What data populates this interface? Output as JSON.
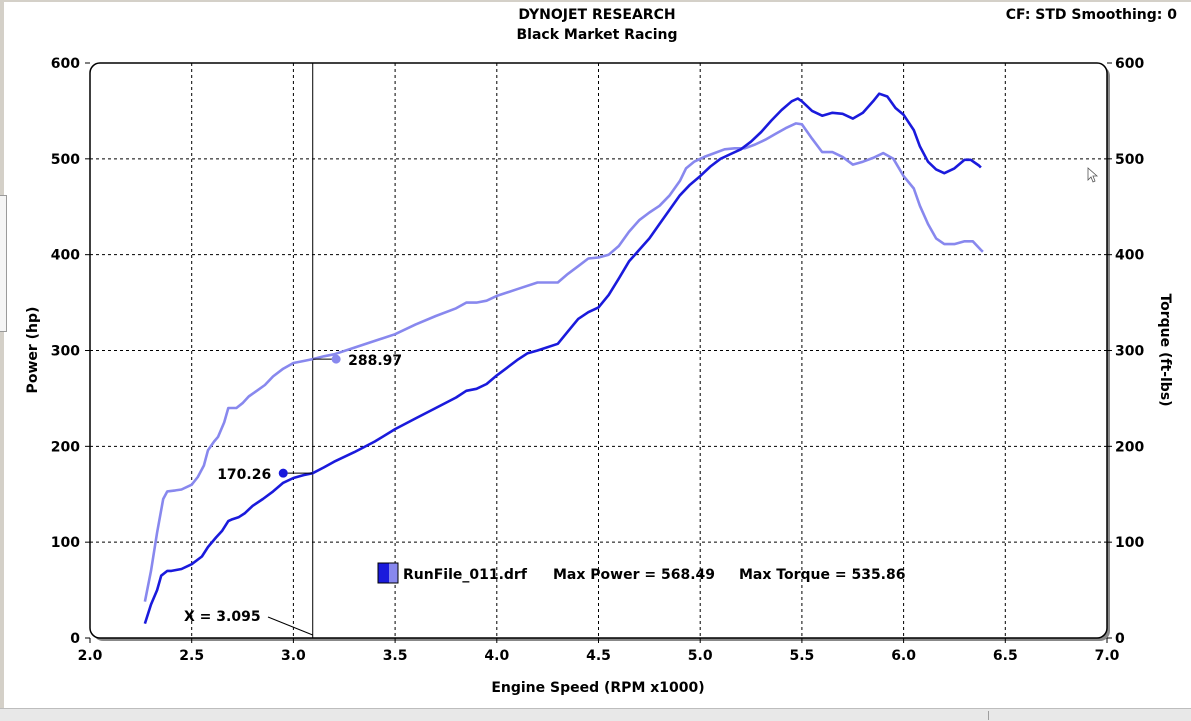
{
  "header": {
    "title": "DYNOJET RESEARCH",
    "subtitle": "Black Market Racing",
    "settings": "CF: STD  Smoothing: 0"
  },
  "chart_data": {
    "type": "line",
    "xlabel": "Engine Speed (RPM x1000)",
    "ylabel_left": "Power (hp)",
    "ylabel_right": "Torque (ft-lbs)",
    "xlim": [
      2.0,
      7.0
    ],
    "ylim": [
      0,
      600
    ],
    "x_ticks": [
      "2.0",
      "2.5",
      "3.0",
      "3.5",
      "4.0",
      "4.5",
      "5.0",
      "5.5",
      "6.0",
      "6.5",
      "7.0"
    ],
    "y_ticks_left": [
      "0",
      "100",
      "200",
      "300",
      "400",
      "500",
      "600"
    ],
    "y_ticks_right": [
      "0",
      "100",
      "200",
      "300",
      "400",
      "500",
      "600"
    ],
    "grid": true,
    "cursor": {
      "x": 3.095,
      "label": "X = 3.095"
    },
    "series": [
      {
        "role": "power",
        "color": "#1a1adc",
        "points": [
          [
            2.27,
            15
          ],
          [
            2.3,
            35
          ],
          [
            2.33,
            50
          ],
          [
            2.35,
            65
          ],
          [
            2.38,
            70
          ],
          [
            2.4,
            70
          ],
          [
            2.45,
            72
          ],
          [
            2.5,
            77
          ],
          [
            2.55,
            85
          ],
          [
            2.58,
            95
          ],
          [
            2.62,
            105
          ],
          [
            2.65,
            112
          ],
          [
            2.68,
            122
          ],
          [
            2.7,
            124
          ],
          [
            2.73,
            126
          ],
          [
            2.76,
            130
          ],
          [
            2.8,
            138
          ],
          [
            2.85,
            145
          ],
          [
            2.9,
            153
          ],
          [
            2.95,
            162
          ],
          [
            3.0,
            167
          ],
          [
            3.05,
            170
          ],
          [
            3.095,
            172
          ],
          [
            3.15,
            178
          ],
          [
            3.2,
            184
          ],
          [
            3.3,
            194
          ],
          [
            3.4,
            205
          ],
          [
            3.5,
            218
          ],
          [
            3.6,
            229
          ],
          [
            3.7,
            240
          ],
          [
            3.8,
            251
          ],
          [
            3.85,
            258
          ],
          [
            3.9,
            260
          ],
          [
            3.95,
            265
          ],
          [
            4.0,
            274
          ],
          [
            4.05,
            282
          ],
          [
            4.1,
            290
          ],
          [
            4.15,
            297
          ],
          [
            4.2,
            300
          ],
          [
            4.3,
            307
          ],
          [
            4.35,
            320
          ],
          [
            4.4,
            333
          ],
          [
            4.45,
            340
          ],
          [
            4.5,
            345
          ],
          [
            4.55,
            358
          ],
          [
            4.6,
            375
          ],
          [
            4.65,
            393
          ],
          [
            4.7,
            405
          ],
          [
            4.75,
            417
          ],
          [
            4.8,
            432
          ],
          [
            4.85,
            447
          ],
          [
            4.9,
            462
          ],
          [
            4.95,
            473
          ],
          [
            5.0,
            482
          ],
          [
            5.05,
            492
          ],
          [
            5.1,
            500
          ],
          [
            5.15,
            505
          ],
          [
            5.2,
            510
          ],
          [
            5.25,
            518
          ],
          [
            5.3,
            528
          ],
          [
            5.35,
            540
          ],
          [
            5.4,
            551
          ],
          [
            5.45,
            560
          ],
          [
            5.48,
            563
          ],
          [
            5.5,
            560
          ],
          [
            5.55,
            550
          ],
          [
            5.6,
            545
          ],
          [
            5.65,
            548
          ],
          [
            5.7,
            547
          ],
          [
            5.75,
            542
          ],
          [
            5.8,
            548
          ],
          [
            5.85,
            560
          ],
          [
            5.88,
            568
          ],
          [
            5.92,
            565
          ],
          [
            5.96,
            553
          ],
          [
            6.0,
            546
          ],
          [
            6.05,
            530
          ],
          [
            6.08,
            513
          ],
          [
            6.12,
            497
          ],
          [
            6.16,
            489
          ],
          [
            6.2,
            485
          ],
          [
            6.25,
            490
          ],
          [
            6.3,
            499
          ],
          [
            6.33,
            499
          ],
          [
            6.37,
            493
          ],
          [
            6.38,
            491
          ]
        ]
      },
      {
        "role": "torque",
        "color": "#8888ee",
        "points": [
          [
            2.27,
            38
          ],
          [
            2.3,
            70
          ],
          [
            2.33,
            110
          ],
          [
            2.36,
            145
          ],
          [
            2.38,
            153
          ],
          [
            2.42,
            154
          ],
          [
            2.45,
            155
          ],
          [
            2.5,
            160
          ],
          [
            2.53,
            168
          ],
          [
            2.56,
            180
          ],
          [
            2.58,
            196
          ],
          [
            2.61,
            205
          ],
          [
            2.63,
            210
          ],
          [
            2.66,
            225
          ],
          [
            2.68,
            240
          ],
          [
            2.72,
            240
          ],
          [
            2.75,
            245
          ],
          [
            2.78,
            252
          ],
          [
            2.82,
            258
          ],
          [
            2.86,
            264
          ],
          [
            2.9,
            273
          ],
          [
            2.95,
            281
          ],
          [
            3.0,
            287
          ],
          [
            3.05,
            289
          ],
          [
            3.095,
            291
          ],
          [
            3.15,
            294
          ],
          [
            3.2,
            296
          ],
          [
            3.3,
            303
          ],
          [
            3.4,
            310
          ],
          [
            3.5,
            317
          ],
          [
            3.6,
            327
          ],
          [
            3.7,
            336
          ],
          [
            3.8,
            344
          ],
          [
            3.85,
            350
          ],
          [
            3.9,
            350
          ],
          [
            3.95,
            352
          ],
          [
            4.0,
            357
          ],
          [
            4.1,
            364
          ],
          [
            4.2,
            371
          ],
          [
            4.3,
            371
          ],
          [
            4.35,
            380
          ],
          [
            4.4,
            388
          ],
          [
            4.45,
            396
          ],
          [
            4.5,
            397
          ],
          [
            4.55,
            400
          ],
          [
            4.6,
            409
          ],
          [
            4.65,
            424
          ],
          [
            4.7,
            436
          ],
          [
            4.75,
            444
          ],
          [
            4.8,
            451
          ],
          [
            4.85,
            462
          ],
          [
            4.9,
            477
          ],
          [
            4.93,
            490
          ],
          [
            4.97,
            497
          ],
          [
            5.02,
            502
          ],
          [
            5.07,
            506
          ],
          [
            5.12,
            510
          ],
          [
            5.17,
            511
          ],
          [
            5.22,
            511
          ],
          [
            5.27,
            515
          ],
          [
            5.32,
            520
          ],
          [
            5.37,
            526
          ],
          [
            5.42,
            532
          ],
          [
            5.47,
            537
          ],
          [
            5.5,
            536
          ],
          [
            5.55,
            521
          ],
          [
            5.6,
            507
          ],
          [
            5.65,
            507
          ],
          [
            5.7,
            502
          ],
          [
            5.75,
            494
          ],
          [
            5.8,
            497
          ],
          [
            5.85,
            501
          ],
          [
            5.9,
            506
          ],
          [
            5.95,
            500
          ],
          [
            6.0,
            482
          ],
          [
            6.05,
            469
          ],
          [
            6.08,
            451
          ],
          [
            6.12,
            432
          ],
          [
            6.16,
            417
          ],
          [
            6.2,
            411
          ],
          [
            6.25,
            411
          ],
          [
            6.3,
            414
          ],
          [
            6.34,
            414
          ],
          [
            6.38,
            405
          ],
          [
            6.39,
            403
          ]
        ]
      }
    ],
    "markers": [
      {
        "label": "288.97",
        "series": "torque",
        "x": 3.21,
        "y": 291
      },
      {
        "label": "170.26",
        "series": "power",
        "x": 2.95,
        "y": 172
      }
    ],
    "legend": {
      "file": "RunFile_011.drf",
      "max_power_label": "Max Power = 568.49",
      "max_torque_label": "Max Torque = 535.86"
    }
  }
}
